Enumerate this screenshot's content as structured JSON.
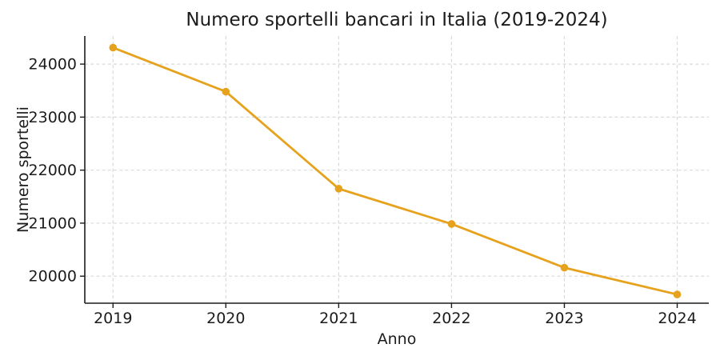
{
  "chart_data": {
    "type": "line",
    "title": "Numero sportelli bancari in Italia (2019-2024)",
    "xlabel": "Anno",
    "ylabel": "Numero sportelli",
    "categories": [
      2019,
      2020,
      2021,
      2022,
      2023,
      2024
    ],
    "values": [
      24310,
      23480,
      21650,
      20985,
      20160,
      19655
    ],
    "x_tick_labels": [
      "2019",
      "2020",
      "2021",
      "2022",
      "2023",
      "2024"
    ],
    "y_ticks": [
      20000,
      21000,
      22000,
      23000,
      24000
    ],
    "y_tick_labels": [
      "20000",
      "21000",
      "22000",
      "23000",
      "24000"
    ],
    "xlim": [
      2018.75,
      2024.28
    ],
    "ylim": [
      19490,
      24530
    ],
    "grid": true,
    "grid_style": "dashed",
    "legend": null,
    "line_color": "#E6A21C",
    "marker": "circle",
    "axis_color": "#1c1c1c",
    "grid_color": "#d9d9d9",
    "background_color": "#ffffff"
  }
}
